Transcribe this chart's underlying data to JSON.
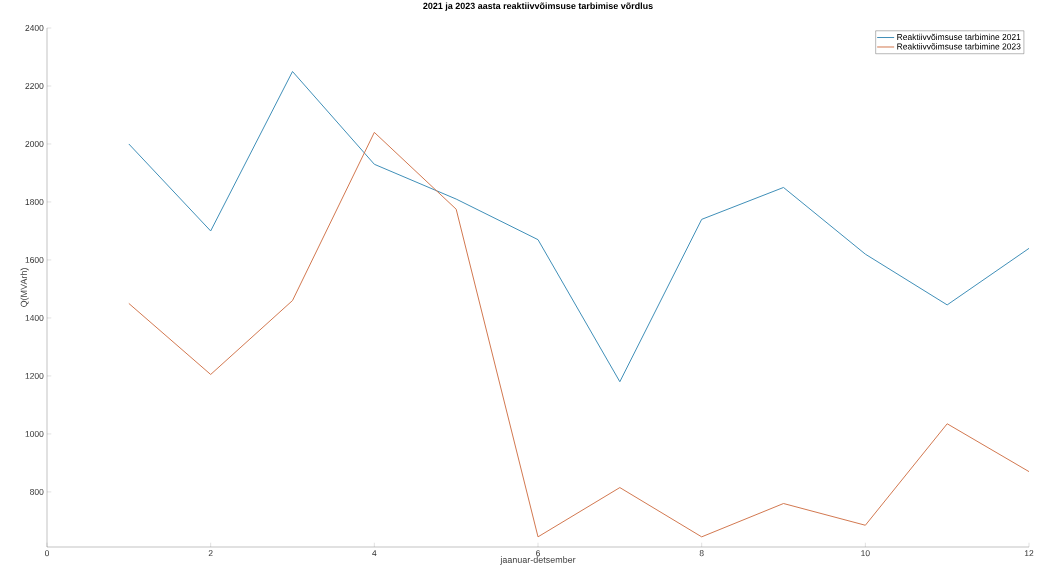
{
  "chart_data": {
    "type": "line",
    "title": "2021 ja 2023 aasta reaktiivvõimsuse tarbimise võrdlus",
    "xlabel": "jaanuar-detsember",
    "ylabel": "Q(MVArh)",
    "x": [
      1,
      2,
      3,
      4,
      5,
      6,
      7,
      8,
      9,
      10,
      11,
      12
    ],
    "series": [
      {
        "name": "Reaktiivvõimsuse tarbimine 2021",
        "color": "#3f8fb8",
        "values": [
          2000,
          1700,
          2250,
          1930,
          1810,
          1670,
          1180,
          1740,
          1850,
          1620,
          1445,
          1640
        ]
      },
      {
        "name": "Reaktiivvõimsuse tarbimine 2023",
        "color": "#d2774f",
        "values": [
          1450,
          1205,
          1460,
          2040,
          1775,
          645,
          815,
          645,
          760,
          685,
          1035,
          870
        ]
      }
    ],
    "xlim": [
      0,
      12
    ],
    "ylim": [
      610,
      2400
    ],
    "xticks": [
      0,
      2,
      4,
      6,
      8,
      10,
      12
    ],
    "yticks": [
      800,
      1000,
      1200,
      1400,
      1600,
      1800,
      2000,
      2200,
      2400
    ],
    "grid": false,
    "legend": "top right",
    "marker": "none",
    "line_style": "solid"
  }
}
